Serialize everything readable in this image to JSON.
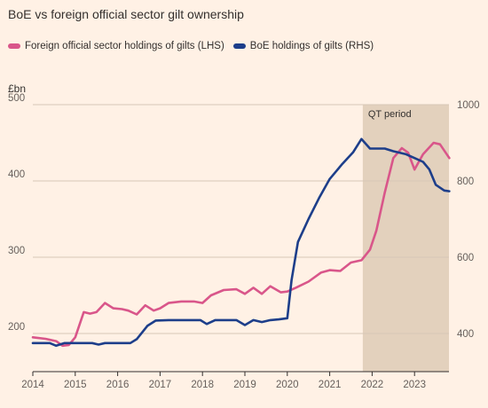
{
  "title": "BoE vs foreign official sector gilt ownership",
  "colors": {
    "background": "#fff1e5",
    "foreign": "#d9568a",
    "boe": "#1d3e8a",
    "shade": "#e3d1bd",
    "grid": "#d7c7b8"
  },
  "chart_data": {
    "type": "line",
    "title": "BoE vs foreign official sector gilt ownership",
    "ylabel": "£bn",
    "annotation": "QT period",
    "shaded_region": [
      2021.78,
      2023.82
    ],
    "xlim": [
      2014,
      2023.82
    ],
    "x_ticks": [
      2014,
      2015,
      2016,
      2017,
      2018,
      2019,
      2020,
      2021,
      2022,
      2023
    ],
    "x_tick_labels": [
      "2014",
      "2015",
      "2016",
      "2017",
      "2018",
      "2019",
      "2020",
      "2021",
      "2022",
      "2023"
    ],
    "y_left": {
      "min": 150,
      "max": 500,
      "ticks": [
        200,
        300,
        400,
        500
      ],
      "tick_labels": [
        "200",
        "300",
        "400",
        "500"
      ]
    },
    "y_right": {
      "min": 300,
      "max": 1000,
      "ticks": [
        400,
        600,
        800,
        1000
      ],
      "tick_labels": [
        "400",
        "600",
        "800",
        "1000"
      ]
    },
    "legend_position": "top-left",
    "grid": true,
    "series": [
      {
        "name": "Foreign official sector holdings of gilts (LHS)",
        "axis": "left",
        "color": "#d9568a",
        "points": [
          [
            2014.0,
            195
          ],
          [
            2014.3,
            193
          ],
          [
            2014.55,
            190
          ],
          [
            2014.7,
            184
          ],
          [
            2014.85,
            185
          ],
          [
            2015.0,
            195
          ],
          [
            2015.2,
            228
          ],
          [
            2015.35,
            226
          ],
          [
            2015.5,
            228
          ],
          [
            2015.7,
            240
          ],
          [
            2015.9,
            233
          ],
          [
            2016.1,
            232
          ],
          [
            2016.25,
            230
          ],
          [
            2016.45,
            225
          ],
          [
            2016.65,
            237
          ],
          [
            2016.85,
            230
          ],
          [
            2017.0,
            233
          ],
          [
            2017.2,
            240
          ],
          [
            2017.5,
            242
          ],
          [
            2017.8,
            242
          ],
          [
            2018.0,
            240
          ],
          [
            2018.2,
            250
          ],
          [
            2018.5,
            257
          ],
          [
            2018.8,
            258
          ],
          [
            2019.0,
            252
          ],
          [
            2019.2,
            260
          ],
          [
            2019.4,
            252
          ],
          [
            2019.6,
            262
          ],
          [
            2019.85,
            254
          ],
          [
            2020.0,
            255
          ],
          [
            2020.2,
            260
          ],
          [
            2020.5,
            268
          ],
          [
            2020.8,
            280
          ],
          [
            2021.0,
            283
          ],
          [
            2021.25,
            282
          ],
          [
            2021.5,
            293
          ],
          [
            2021.75,
            296
          ],
          [
            2021.95,
            310
          ],
          [
            2022.1,
            335
          ],
          [
            2022.3,
            385
          ],
          [
            2022.5,
            430
          ],
          [
            2022.7,
            443
          ],
          [
            2022.85,
            437
          ],
          [
            2023.0,
            415
          ],
          [
            2023.2,
            435
          ],
          [
            2023.45,
            450
          ],
          [
            2023.6,
            448
          ],
          [
            2023.82,
            430
          ]
        ]
      },
      {
        "name": "BoE holdings of gilts (RHS)",
        "axis": "right",
        "color": "#1d3e8a",
        "points": [
          [
            2014.0,
            375
          ],
          [
            2014.4,
            375
          ],
          [
            2014.55,
            368
          ],
          [
            2014.75,
            375
          ],
          [
            2015.0,
            375
          ],
          [
            2015.4,
            375
          ],
          [
            2015.55,
            371
          ],
          [
            2015.7,
            375
          ],
          [
            2016.0,
            375
          ],
          [
            2016.3,
            375
          ],
          [
            2016.45,
            385
          ],
          [
            2016.7,
            420
          ],
          [
            2016.9,
            434
          ],
          [
            2017.2,
            435
          ],
          [
            2017.5,
            435
          ],
          [
            2017.8,
            435
          ],
          [
            2017.95,
            435
          ],
          [
            2018.1,
            425
          ],
          [
            2018.3,
            435
          ],
          [
            2018.8,
            435
          ],
          [
            2019.0,
            422
          ],
          [
            2019.2,
            435
          ],
          [
            2019.4,
            430
          ],
          [
            2019.6,
            435
          ],
          [
            2019.8,
            437
          ],
          [
            2020.0,
            440
          ],
          [
            2020.1,
            540
          ],
          [
            2020.25,
            640
          ],
          [
            2020.5,
            700
          ],
          [
            2020.75,
            755
          ],
          [
            2021.0,
            805
          ],
          [
            2021.3,
            845
          ],
          [
            2021.55,
            875
          ],
          [
            2021.75,
            910
          ],
          [
            2021.95,
            885
          ],
          [
            2022.1,
            885
          ],
          [
            2022.3,
            885
          ],
          [
            2022.5,
            878
          ],
          [
            2022.8,
            870
          ],
          [
            2023.0,
            860
          ],
          [
            2023.2,
            850
          ],
          [
            2023.35,
            830
          ],
          [
            2023.5,
            790
          ],
          [
            2023.7,
            775
          ],
          [
            2023.82,
            773
          ]
        ]
      }
    ]
  }
}
